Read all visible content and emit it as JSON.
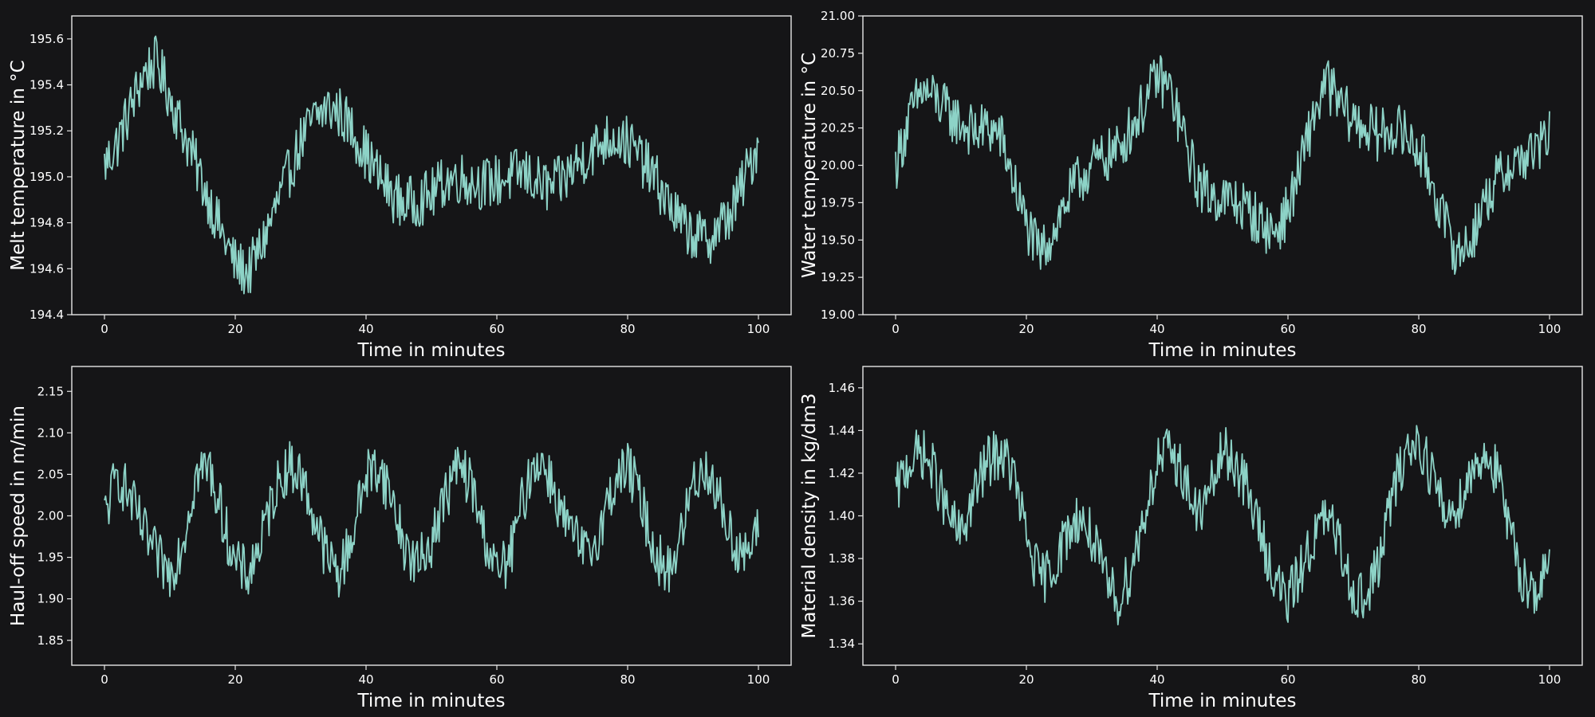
{
  "colors": {
    "background": "#151517",
    "axis": "#e6e6e6",
    "line": "#8dd3c7"
  },
  "chart_data": [
    {
      "type": "line",
      "title": "",
      "xlabel": "Time in minutes",
      "ylabel": "Melt temperature in °C",
      "xlim": [
        -5,
        105
      ],
      "ylim": [
        194.4,
        195.7
      ],
      "xticks": [
        0,
        20,
        40,
        60,
        80,
        100
      ],
      "xtick_labels": [
        "0",
        "20",
        "40",
        "60",
        "80",
        "100"
      ],
      "yticks": [
        194.4,
        194.6,
        194.8,
        195.0,
        195.2,
        195.4,
        195.6
      ],
      "ytick_labels": [
        "194.4",
        "194.6",
        "194.8",
        "195.0",
        "195.2",
        "195.4",
        "195.6"
      ],
      "grid": false,
      "series": [
        {
          "x": [
            0,
            2,
            4,
            6,
            8,
            10,
            12,
            14,
            16,
            18,
            20,
            22,
            24,
            26,
            28,
            30,
            32,
            34,
            36,
            38,
            40,
            42,
            44,
            46,
            48,
            50,
            52,
            54,
            56,
            58,
            60,
            62,
            64,
            66,
            68,
            70,
            72,
            74,
            76,
            78,
            80,
            82,
            84,
            86,
            88,
            90,
            92,
            94,
            96,
            98,
            100
          ],
          "y": [
            195.05,
            195.15,
            195.3,
            195.45,
            195.5,
            195.35,
            195.2,
            195.05,
            194.9,
            194.75,
            194.62,
            194.58,
            194.7,
            194.85,
            195.0,
            195.15,
            195.25,
            195.3,
            195.28,
            195.2,
            195.1,
            195.0,
            194.92,
            194.88,
            194.9,
            194.92,
            194.98,
            195.0,
            194.98,
            194.97,
            194.98,
            195.0,
            195.02,
            194.98,
            194.95,
            194.98,
            195.05,
            195.1,
            195.15,
            195.18,
            195.15,
            195.08,
            195.0,
            194.9,
            194.8,
            194.75,
            194.72,
            194.78,
            194.85,
            195.0,
            195.15
          ]
        }
      ]
    },
    {
      "type": "line",
      "title": "",
      "xlabel": "Time in minutes",
      "ylabel": "Water temperature in °C",
      "xlim": [
        -5,
        105
      ],
      "ylim": [
        19.0,
        21.0
      ],
      "xticks": [
        0,
        20,
        40,
        60,
        80,
        100
      ],
      "xtick_labels": [
        "0",
        "20",
        "40",
        "60",
        "80",
        "100"
      ],
      "yticks": [
        19.0,
        19.25,
        19.5,
        19.75,
        20.0,
        20.25,
        20.5,
        20.75,
        21.0
      ],
      "ytick_labels": [
        "19.00",
        "19.25",
        "19.50",
        "19.75",
        "20.00",
        "20.25",
        "20.50",
        "20.75",
        "21.00"
      ],
      "grid": false,
      "series": [
        {
          "x": [
            0,
            2,
            4,
            6,
            8,
            10,
            12,
            14,
            16,
            18,
            20,
            22,
            24,
            26,
            28,
            30,
            32,
            34,
            36,
            38,
            40,
            42,
            44,
            46,
            48,
            50,
            52,
            54,
            56,
            58,
            60,
            62,
            64,
            66,
            68,
            70,
            72,
            74,
            76,
            78,
            80,
            82,
            84,
            86,
            88,
            90,
            92,
            94,
            96,
            98,
            100
          ],
          "y": [
            20.0,
            20.3,
            20.5,
            20.45,
            20.35,
            20.28,
            20.22,
            20.25,
            20.2,
            19.9,
            19.6,
            19.4,
            19.55,
            19.75,
            19.9,
            20.0,
            20.05,
            20.1,
            20.25,
            20.4,
            20.6,
            20.5,
            20.2,
            19.9,
            19.8,
            19.78,
            19.75,
            19.7,
            19.6,
            19.55,
            19.7,
            20.0,
            20.35,
            20.55,
            20.4,
            20.3,
            20.25,
            20.2,
            20.25,
            20.2,
            20.1,
            19.9,
            19.6,
            19.4,
            19.5,
            19.75,
            19.9,
            20.0,
            20.05,
            20.1,
            20.2
          ]
        }
      ]
    },
    {
      "type": "line",
      "title": "",
      "xlabel": "Time in minutes",
      "ylabel": "Haul-off speed in m/min",
      "xlim": [
        -5,
        105
      ],
      "ylim": [
        1.82,
        2.18
      ],
      "xticks": [
        0,
        20,
        40,
        60,
        80,
        100
      ],
      "xtick_labels": [
        "0",
        "20",
        "40",
        "60",
        "80",
        "100"
      ],
      "yticks": [
        1.85,
        1.9,
        1.95,
        2.0,
        2.05,
        2.1,
        2.15
      ],
      "ytick_labels": [
        "1.85",
        "1.90",
        "1.95",
        "2.00",
        "2.05",
        "2.10",
        "2.15"
      ],
      "grid": false,
      "series": [
        {
          "x": [
            0,
            2,
            4,
            6,
            8,
            10,
            12,
            14,
            16,
            18,
            20,
            22,
            24,
            26,
            28,
            30,
            32,
            34,
            36,
            38,
            40,
            42,
            44,
            46,
            48,
            50,
            52,
            54,
            56,
            58,
            60,
            62,
            64,
            66,
            68,
            70,
            72,
            74,
            76,
            78,
            80,
            82,
            84,
            86,
            88,
            90,
            92,
            94,
            96,
            98,
            100
          ],
          "y": [
            2.0,
            2.05,
            2.02,
            1.98,
            1.95,
            1.93,
            1.97,
            2.05,
            2.06,
            2.0,
            1.94,
            1.93,
            1.97,
            2.03,
            2.06,
            2.05,
            2.0,
            1.95,
            1.93,
            1.98,
            2.05,
            2.06,
            2.02,
            1.96,
            1.94,
            1.97,
            2.02,
            2.06,
            2.04,
            1.98,
            1.93,
            1.95,
            2.02,
            2.07,
            2.05,
            2.0,
            1.97,
            1.95,
            1.99,
            2.04,
            2.06,
            2.02,
            1.96,
            1.93,
            1.97,
            2.04,
            2.06,
            2.02,
            1.97,
            1.95,
            1.98
          ]
        }
      ]
    },
    {
      "type": "line",
      "title": "",
      "xlabel": "Time in minutes",
      "ylabel": "Material density in kg/dm3",
      "xlim": [
        -5,
        105
      ],
      "ylim": [
        1.33,
        1.47
      ],
      "xticks": [
        0,
        20,
        40,
        60,
        80,
        100
      ],
      "xtick_labels": [
        "0",
        "20",
        "40",
        "60",
        "80",
        "100"
      ],
      "yticks": [
        1.34,
        1.36,
        1.38,
        1.4,
        1.42,
        1.44,
        1.46
      ],
      "ytick_labels": [
        "1.34",
        "1.36",
        "1.38",
        "1.40",
        "1.42",
        "1.44",
        "1.46"
      ],
      "grid": false,
      "series": [
        {
          "x": [
            0,
            2,
            4,
            6,
            8,
            10,
            12,
            14,
            16,
            18,
            20,
            22,
            24,
            26,
            28,
            30,
            32,
            34,
            36,
            38,
            40,
            42,
            44,
            46,
            48,
            50,
            52,
            54,
            56,
            58,
            60,
            62,
            64,
            66,
            68,
            70,
            72,
            74,
            76,
            78,
            80,
            82,
            84,
            86,
            88,
            90,
            92,
            94,
            96,
            98,
            100
          ],
          "y": [
            1.41,
            1.425,
            1.43,
            1.42,
            1.4,
            1.39,
            1.41,
            1.425,
            1.43,
            1.42,
            1.39,
            1.37,
            1.375,
            1.39,
            1.4,
            1.39,
            1.37,
            1.36,
            1.375,
            1.4,
            1.425,
            1.43,
            1.42,
            1.4,
            1.41,
            1.43,
            1.425,
            1.41,
            1.39,
            1.37,
            1.36,
            1.375,
            1.39,
            1.4,
            1.385,
            1.365,
            1.36,
            1.38,
            1.41,
            1.43,
            1.435,
            1.42,
            1.4,
            1.405,
            1.42,
            1.43,
            1.42,
            1.39,
            1.37,
            1.365,
            1.375
          ]
        }
      ]
    }
  ]
}
